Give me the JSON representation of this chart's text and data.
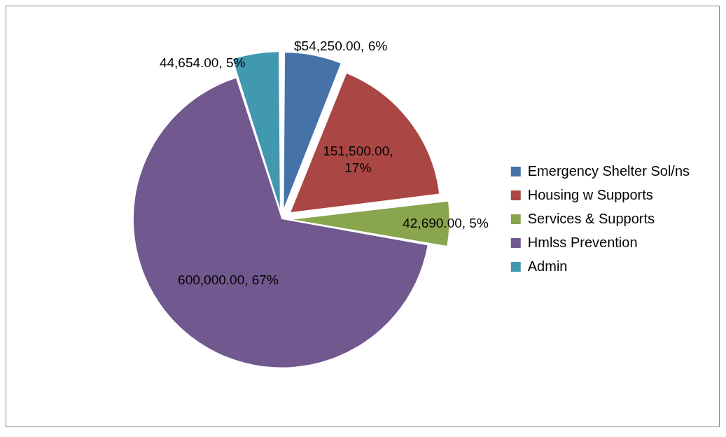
{
  "chart_data": {
    "type": "pie",
    "categories": [
      "Emergency Shelter Sol/ns",
      "Housing w Supports",
      "Services & Supports",
      "Hmlss Prevention",
      "Admin"
    ],
    "values": [
      54250,
      151500,
      42690,
      600000,
      44654
    ],
    "colors": [
      "#4572a7",
      "#aa4643",
      "#89a54e",
      "#71588f",
      "#4198af"
    ],
    "value_labels": [
      "$54,250.00, 6%",
      "151,500.00, 17%",
      "42,690.00, 5%",
      "600,000.00, 67%",
      "44,654.00, 5%"
    ],
    "legend": "right"
  }
}
